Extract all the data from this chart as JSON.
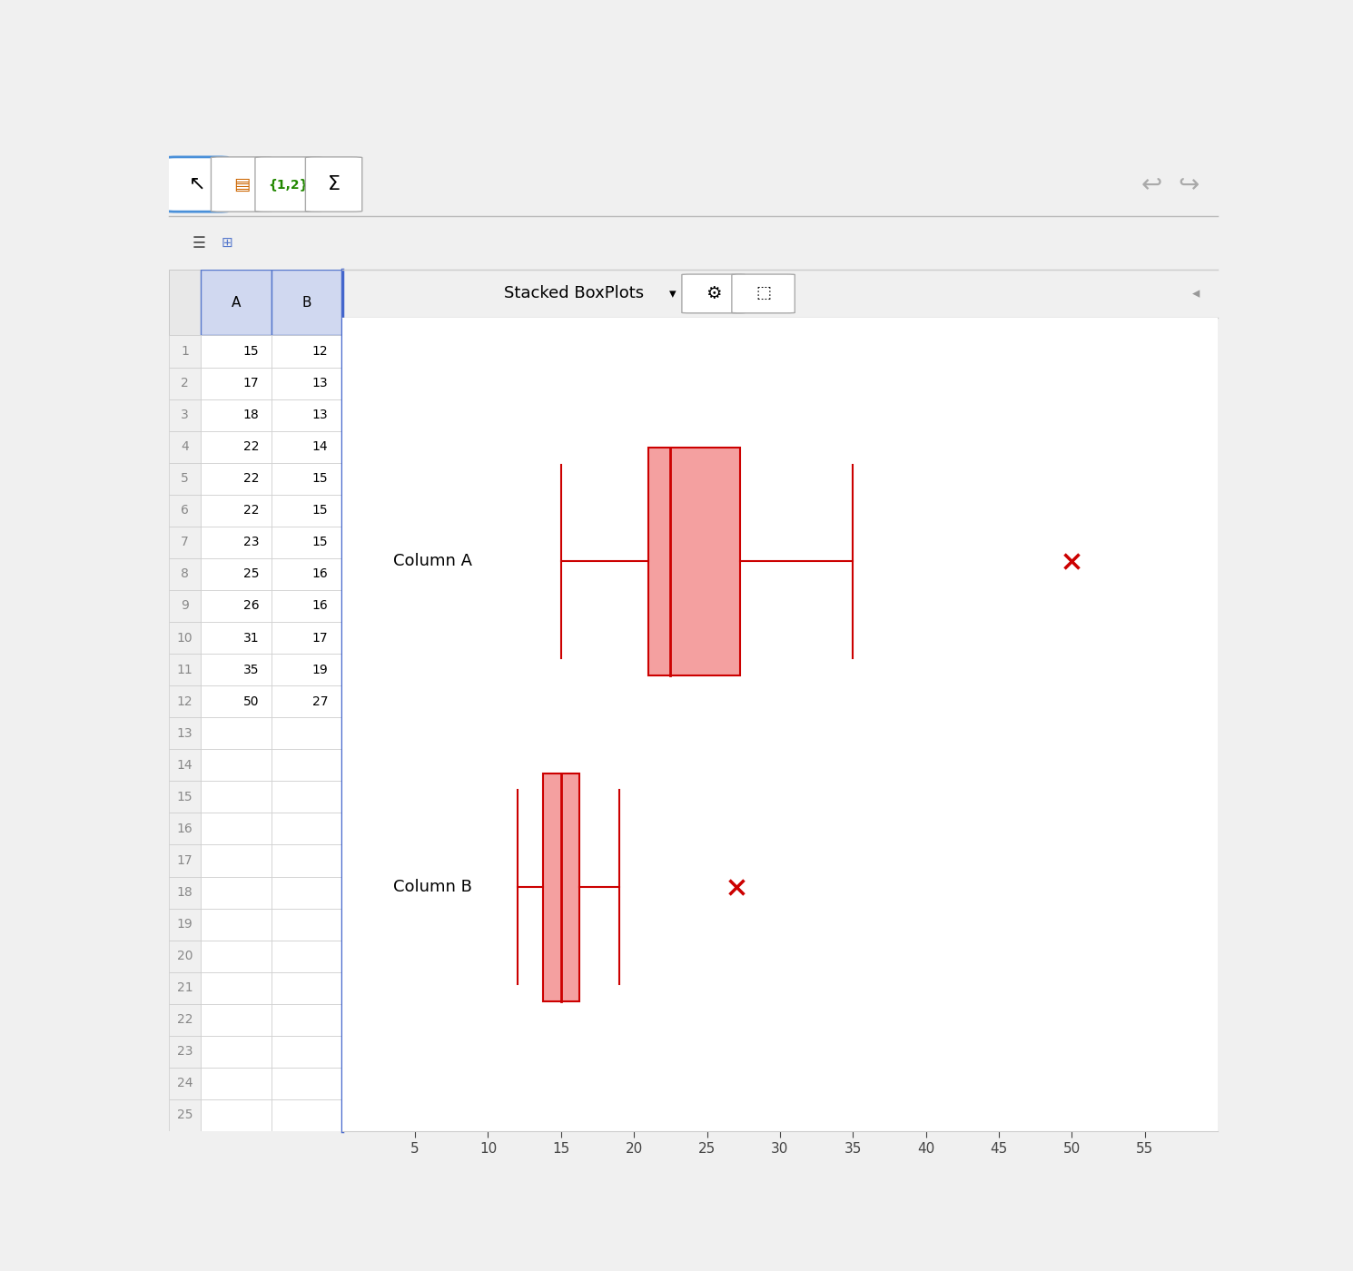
{
  "col_A": [
    15,
    17,
    18,
    22,
    22,
    22,
    23,
    25,
    26,
    31,
    35,
    50
  ],
  "col_B": [
    12,
    13,
    13,
    14,
    15,
    15,
    15,
    16,
    16,
    17,
    19,
    27
  ],
  "col_A_label": "Column A",
  "col_B_label": "Column B",
  "xlim": [
    0,
    60
  ],
  "xticks": [
    5,
    10,
    15,
    20,
    25,
    30,
    35,
    40,
    45,
    50,
    55
  ],
  "box_color": "#f4a0a0",
  "line_color": "#cc0000",
  "outlier_color": "#cc0000",
  "title_text": "Stacked BoxPlots",
  "spreadsheet_col_A": [
    15,
    17,
    18,
    22,
    22,
    22,
    23,
    25,
    26,
    31,
    35,
    50
  ],
  "spreadsheet_col_B": [
    12,
    13,
    13,
    14,
    15,
    15,
    15,
    16,
    16,
    17,
    19,
    27
  ],
  "n_rows": 25
}
